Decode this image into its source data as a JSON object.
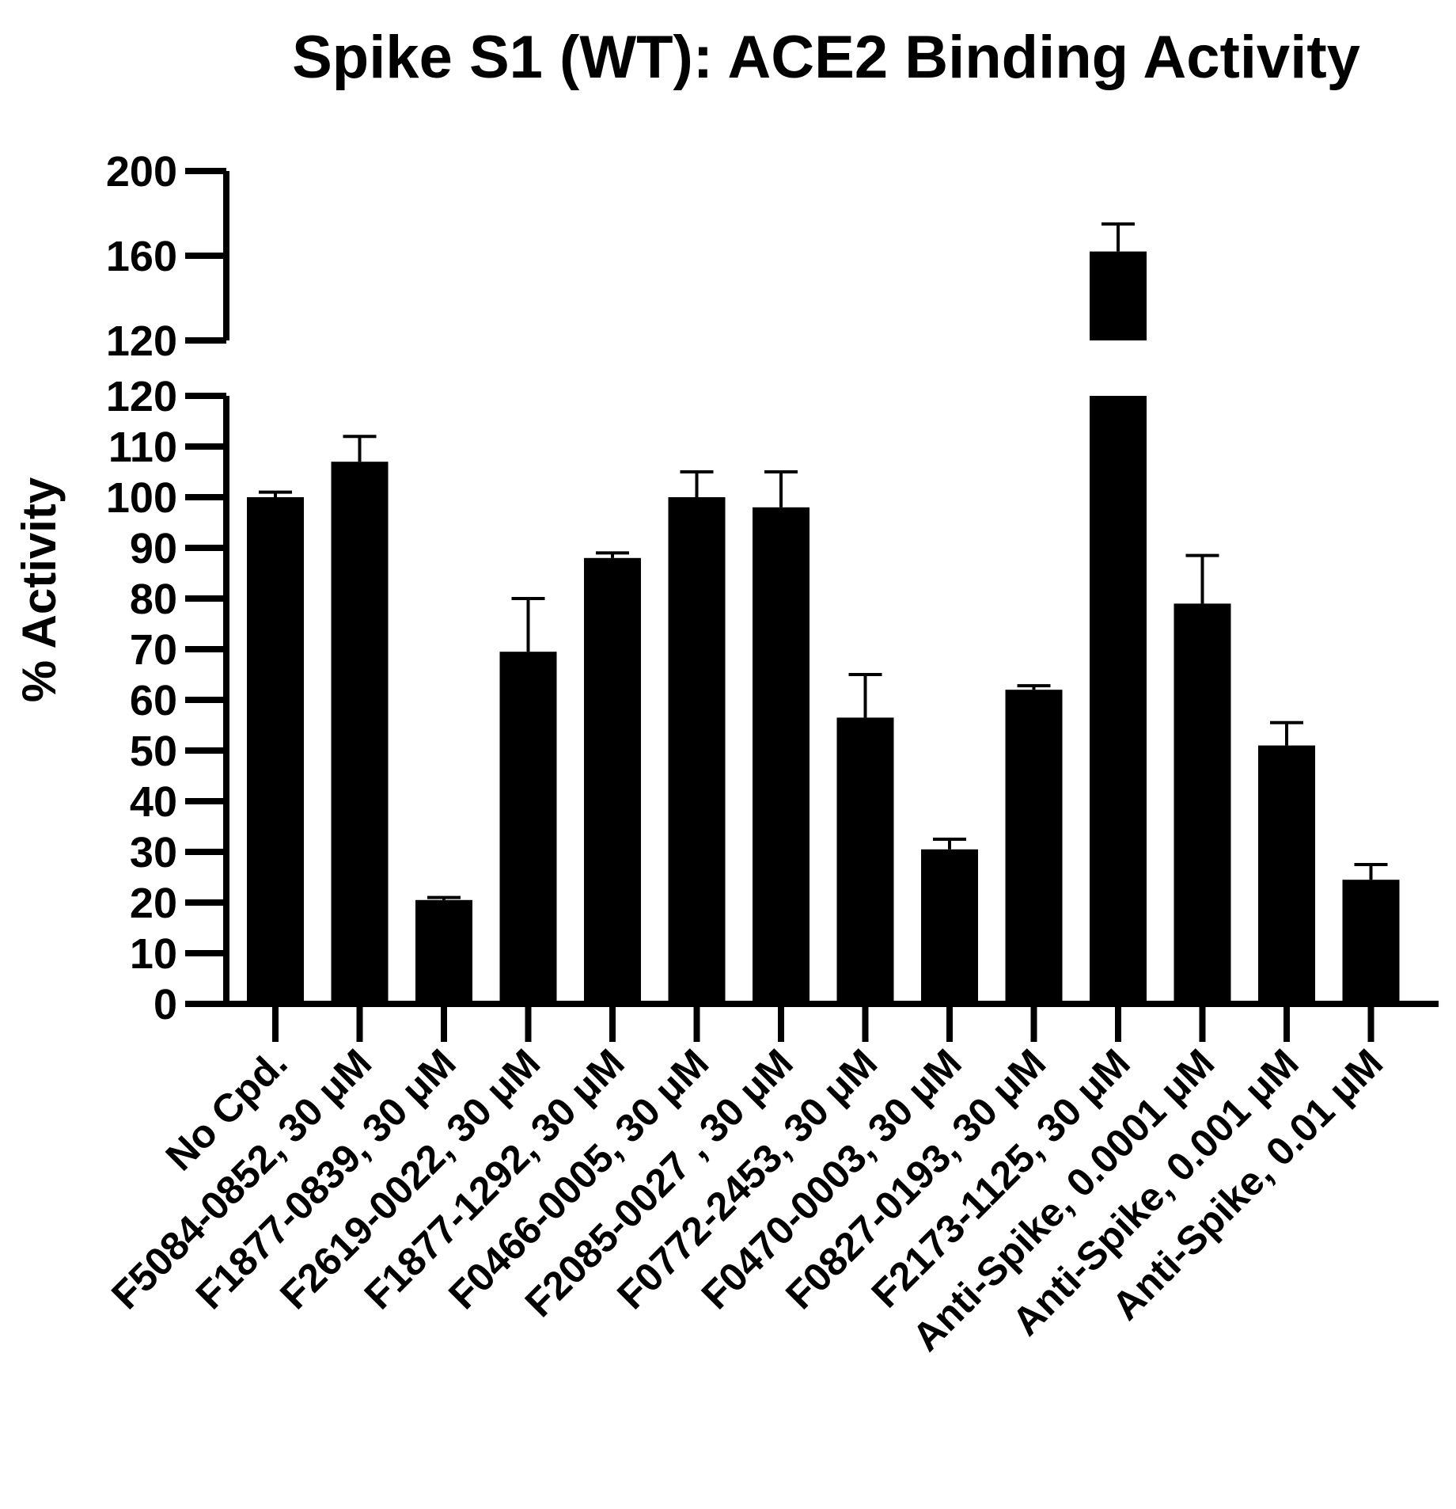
{
  "chart_data": {
    "type": "bar",
    "title": "Spike S1 (WT): ACE2 Binding Activity",
    "xlabel": "",
    "ylabel": "% Activity",
    "y_axis_break": {
      "lower_range": [
        0,
        120
      ],
      "upper_range": [
        120,
        200
      ]
    },
    "lower_ticks": [
      0,
      10,
      20,
      30,
      40,
      50,
      60,
      70,
      80,
      90,
      100,
      110,
      120
    ],
    "upper_ticks": [
      120,
      160,
      200
    ],
    "bar_color": "#000000",
    "grid": false,
    "legend": "none",
    "categories": [
      "No Cpd.",
      "F5084-0852, 30 μM",
      "F1877-0839, 30 μM",
      "F2619-0022, 30 μM",
      "F1877-1292, 30 μM",
      "F0466-0005, 30 μM",
      "F2085-0027 , 30 μM",
      "F0772-2453, 30 μM",
      "F0470-0003, 30 μM",
      "F0827-0193, 30 μM",
      "F2173-1125, 30 μM",
      "Anti-Spike, 0.0001 μM",
      "Anti-Spike, 0.001 μM",
      "Anti-Spike, 0.01 μM"
    ],
    "values": [
      100,
      107,
      20.5,
      69.5,
      88,
      100,
      98,
      56.5,
      30.5,
      62,
      162,
      79,
      51,
      24.5
    ],
    "errors": [
      1,
      5,
      0.5,
      10.5,
      1,
      5,
      7,
      8.5,
      2,
      0.8,
      13,
      9.5,
      4.5,
      3
    ]
  }
}
